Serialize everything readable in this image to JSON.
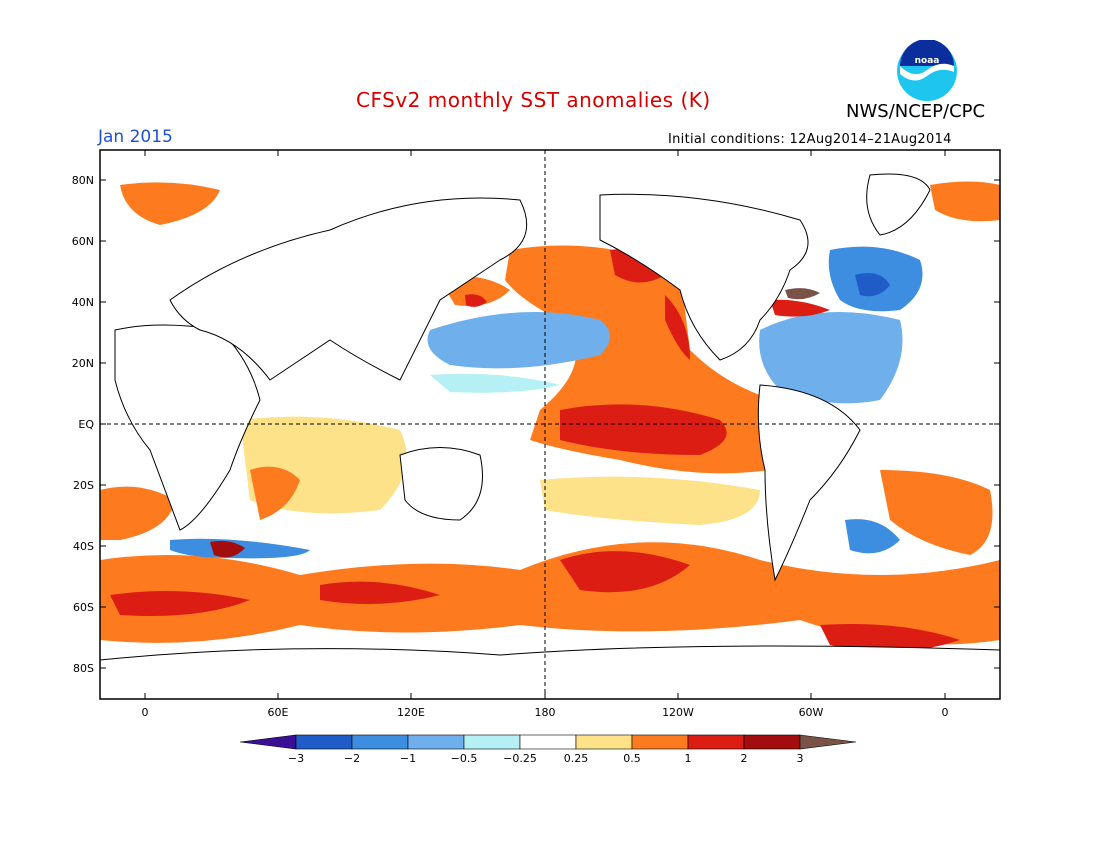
{
  "header": {
    "title": "CFSv2 monthly SST anomalies (K)",
    "agency": "NWS/NCEP/CPC",
    "valid_month": "Jan 2015",
    "initial_conditions": "Initial conditions: 12Aug2014–21Aug2014",
    "logo_text": "noaa"
  },
  "axes": {
    "lat_labels": [
      "80N",
      "60N",
      "40N",
      "20N",
      "EQ",
      "20S",
      "40S",
      "60S",
      "80S"
    ],
    "lon_labels": [
      "0",
      "60E",
      "120E",
      "180",
      "120W",
      "60W",
      "0"
    ]
  },
  "colorbar": {
    "tick_labels": [
      "−3",
      "−2",
      "−1",
      "−0.5",
      "−0.25",
      "0.25",
      "0.5",
      "1",
      "2",
      "3"
    ],
    "colors": [
      "#3a0f96",
      "#1f5cc8",
      "#3d8ee0",
      "#6fb0ec",
      "#b4f0f4",
      "#ffffff",
      "#fde28a",
      "#fd7a1e",
      "#dc1d14",
      "#a40d0d",
      "#7a5346"
    ]
  },
  "anomaly_colors": {
    "cold_3": "#1f5cc8",
    "cold_2": "#3d8ee0",
    "cold_1": "#6fb0ec",
    "cold_05": "#b4f0f4",
    "warm_05": "#fde28a",
    "warm_1": "#fd7a1e",
    "warm_2": "#dc1d14",
    "warm_3": "#a40d0d",
    "extreme": "#7a5346"
  }
}
